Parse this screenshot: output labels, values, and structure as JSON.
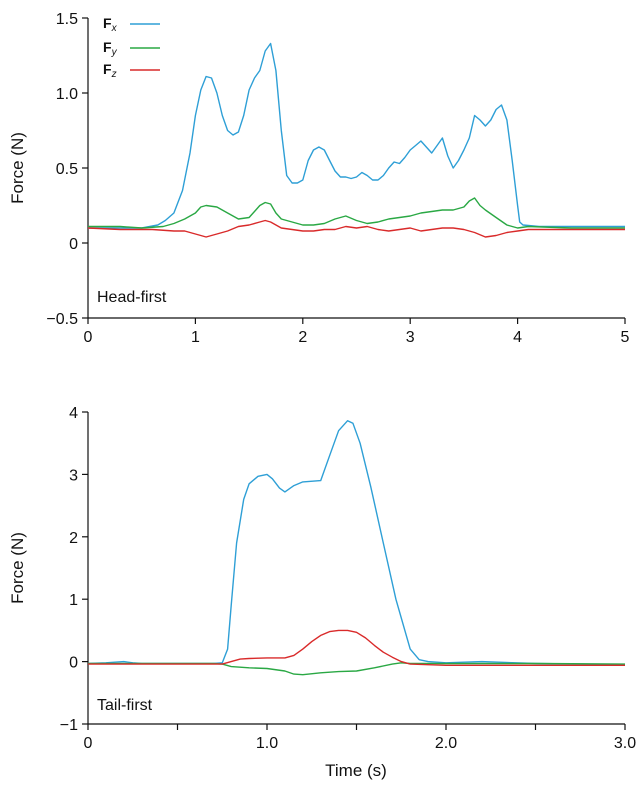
{
  "chart_data": [
    {
      "type": "line",
      "panel_label": "Head-first",
      "xlabel": "",
      "ylabel": "Force (N)",
      "xlim": [
        0,
        5
      ],
      "ylim": [
        -0.5,
        1.5
      ],
      "x_ticks": [
        0,
        1,
        2,
        3,
        4,
        5
      ],
      "x_tick_labels": [
        "0",
        "1",
        "2",
        "3",
        "4",
        "5"
      ],
      "y_ticks": [
        -0.5,
        0,
        0.5,
        1.0,
        1.5
      ],
      "y_tick_labels": [
        "−0.5",
        "0",
        "0.5",
        "1.0",
        "1.5"
      ],
      "grid": false,
      "legend_position": "top-left",
      "series": [
        {
          "name": "Fx",
          "label_main": "F",
          "label_sub": "x",
          "color": "#2e9fd6",
          "x": [
            0,
            0.5,
            0.65,
            0.72,
            0.8,
            0.88,
            0.95,
            1.0,
            1.05,
            1.1,
            1.15,
            1.2,
            1.25,
            1.3,
            1.35,
            1.4,
            1.45,
            1.5,
            1.55,
            1.6,
            1.65,
            1.7,
            1.75,
            1.8,
            1.85,
            1.9,
            1.95,
            2.0,
            2.05,
            2.1,
            2.15,
            2.2,
            2.25,
            2.3,
            2.35,
            2.4,
            2.45,
            2.5,
            2.55,
            2.6,
            2.65,
            2.7,
            2.75,
            2.8,
            2.85,
            2.9,
            2.95,
            3.0,
            3.05,
            3.1,
            3.15,
            3.2,
            3.25,
            3.3,
            3.35,
            3.4,
            3.45,
            3.5,
            3.55,
            3.6,
            3.65,
            3.7,
            3.75,
            3.8,
            3.85,
            3.9,
            3.95,
            4.0,
            4.02,
            4.05,
            4.2,
            4.5,
            5.0
          ],
          "values": [
            0.1,
            0.1,
            0.12,
            0.15,
            0.2,
            0.35,
            0.6,
            0.85,
            1.02,
            1.11,
            1.1,
            1.0,
            0.85,
            0.75,
            0.72,
            0.74,
            0.85,
            1.02,
            1.1,
            1.15,
            1.28,
            1.33,
            1.15,
            0.75,
            0.45,
            0.4,
            0.4,
            0.42,
            0.55,
            0.62,
            0.64,
            0.62,
            0.55,
            0.48,
            0.44,
            0.44,
            0.43,
            0.44,
            0.47,
            0.45,
            0.42,
            0.42,
            0.45,
            0.5,
            0.54,
            0.53,
            0.57,
            0.62,
            0.65,
            0.68,
            0.64,
            0.6,
            0.65,
            0.7,
            0.58,
            0.5,
            0.55,
            0.62,
            0.7,
            0.85,
            0.82,
            0.78,
            0.82,
            0.89,
            0.92,
            0.82,
            0.55,
            0.25,
            0.14,
            0.12,
            0.11,
            0.11,
            0.11
          ]
        },
        {
          "name": "Fy",
          "label_main": "F",
          "label_sub": "y",
          "color": "#2aa844",
          "x": [
            0,
            0.3,
            0.5,
            0.7,
            0.8,
            0.9,
            1.0,
            1.05,
            1.1,
            1.2,
            1.3,
            1.4,
            1.5,
            1.55,
            1.6,
            1.65,
            1.7,
            1.75,
            1.8,
            1.9,
            2.0,
            2.1,
            2.2,
            2.3,
            2.4,
            2.5,
            2.6,
            2.7,
            2.8,
            2.9,
            3.0,
            3.1,
            3.2,
            3.3,
            3.4,
            3.5,
            3.55,
            3.6,
            3.65,
            3.7,
            3.8,
            3.9,
            4.0,
            4.1,
            4.5,
            5.0
          ],
          "values": [
            0.11,
            0.11,
            0.1,
            0.11,
            0.13,
            0.16,
            0.2,
            0.24,
            0.25,
            0.24,
            0.2,
            0.16,
            0.17,
            0.21,
            0.25,
            0.27,
            0.26,
            0.2,
            0.16,
            0.14,
            0.12,
            0.12,
            0.13,
            0.16,
            0.18,
            0.15,
            0.13,
            0.14,
            0.16,
            0.17,
            0.18,
            0.2,
            0.21,
            0.22,
            0.22,
            0.24,
            0.28,
            0.3,
            0.25,
            0.22,
            0.17,
            0.12,
            0.1,
            0.11,
            0.1,
            0.1
          ]
        },
        {
          "name": "Fz",
          "label_main": "F",
          "label_sub": "z",
          "color": "#d92a2a",
          "x": [
            0,
            0.3,
            0.6,
            0.8,
            0.9,
            1.0,
            1.05,
            1.1,
            1.2,
            1.3,
            1.4,
            1.5,
            1.6,
            1.65,
            1.7,
            1.8,
            1.9,
            2.0,
            2.1,
            2.2,
            2.3,
            2.4,
            2.5,
            2.6,
            2.7,
            2.8,
            2.9,
            3.0,
            3.1,
            3.2,
            3.3,
            3.4,
            3.5,
            3.6,
            3.7,
            3.8,
            3.9,
            4.0,
            4.1,
            4.2,
            4.5,
            5.0
          ],
          "values": [
            0.1,
            0.09,
            0.09,
            0.08,
            0.08,
            0.06,
            0.05,
            0.04,
            0.06,
            0.08,
            0.11,
            0.12,
            0.14,
            0.15,
            0.14,
            0.1,
            0.09,
            0.08,
            0.08,
            0.09,
            0.09,
            0.11,
            0.1,
            0.11,
            0.09,
            0.08,
            0.09,
            0.1,
            0.08,
            0.09,
            0.1,
            0.1,
            0.09,
            0.07,
            0.04,
            0.05,
            0.07,
            0.08,
            0.09,
            0.09,
            0.09,
            0.09
          ]
        }
      ]
    },
    {
      "type": "line",
      "panel_label": "Tail-first",
      "xlabel": "Time (s)",
      "ylabel": "Force (N)",
      "xlim": [
        0,
        3.0
      ],
      "ylim": [
        -1,
        4
      ],
      "x_ticks": [
        0,
        0.5,
        1.0,
        1.5,
        2.0,
        2.5,
        3.0
      ],
      "x_tick_labels": [
        "0",
        "",
        "1.0",
        "",
        "2.0",
        "",
        "3.0"
      ],
      "y_ticks": [
        -1,
        0,
        1,
        2,
        3,
        4
      ],
      "y_tick_labels": [
        "−1",
        "0",
        "1",
        "2",
        "3",
        "4"
      ],
      "grid": false,
      "series": [
        {
          "name": "Fx",
          "color": "#2e9fd6",
          "x": [
            0,
            0.1,
            0.2,
            0.25,
            0.3,
            0.5,
            0.7,
            0.75,
            0.78,
            0.8,
            0.83,
            0.87,
            0.9,
            0.95,
            1.0,
            1.03,
            1.07,
            1.1,
            1.15,
            1.2,
            1.3,
            1.35,
            1.4,
            1.45,
            1.48,
            1.52,
            1.58,
            1.65,
            1.72,
            1.8,
            1.85,
            1.9,
            2.0,
            2.2,
            2.5,
            3.0
          ],
          "values": [
            -0.03,
            -0.02,
            0.0,
            -0.02,
            -0.03,
            -0.03,
            -0.03,
            -0.02,
            0.2,
            0.9,
            1.9,
            2.6,
            2.85,
            2.97,
            3.0,
            2.93,
            2.78,
            2.72,
            2.82,
            2.88,
            2.9,
            3.3,
            3.7,
            3.86,
            3.82,
            3.5,
            2.8,
            1.9,
            1.0,
            0.2,
            0.03,
            0.0,
            -0.02,
            0.0,
            -0.03,
            -0.05
          ]
        },
        {
          "name": "Fy",
          "color": "#2aa844",
          "x": [
            0,
            0.5,
            0.7,
            0.75,
            0.8,
            0.9,
            1.0,
            1.1,
            1.15,
            1.2,
            1.3,
            1.4,
            1.5,
            1.6,
            1.7,
            1.75,
            1.8,
            2.0,
            2.5,
            3.0
          ],
          "values": [
            -0.03,
            -0.03,
            -0.03,
            -0.04,
            -0.08,
            -0.1,
            -0.11,
            -0.15,
            -0.2,
            -0.21,
            -0.18,
            -0.16,
            -0.15,
            -0.1,
            -0.04,
            -0.02,
            -0.03,
            -0.03,
            -0.03,
            -0.04
          ]
        },
        {
          "name": "Fz",
          "color": "#d92a2a",
          "x": [
            0,
            0.5,
            0.7,
            0.75,
            0.8,
            0.85,
            0.9,
            1.0,
            1.1,
            1.15,
            1.2,
            1.25,
            1.3,
            1.35,
            1.4,
            1.45,
            1.5,
            1.55,
            1.6,
            1.65,
            1.7,
            1.75,
            1.8,
            2.0,
            2.5,
            3.0
          ],
          "values": [
            -0.04,
            -0.04,
            -0.04,
            -0.04,
            0.0,
            0.04,
            0.05,
            0.06,
            0.06,
            0.1,
            0.2,
            0.32,
            0.42,
            0.48,
            0.5,
            0.5,
            0.47,
            0.38,
            0.26,
            0.15,
            0.07,
            0.0,
            -0.04,
            -0.06,
            -0.06,
            -0.06
          ]
        }
      ]
    }
  ]
}
